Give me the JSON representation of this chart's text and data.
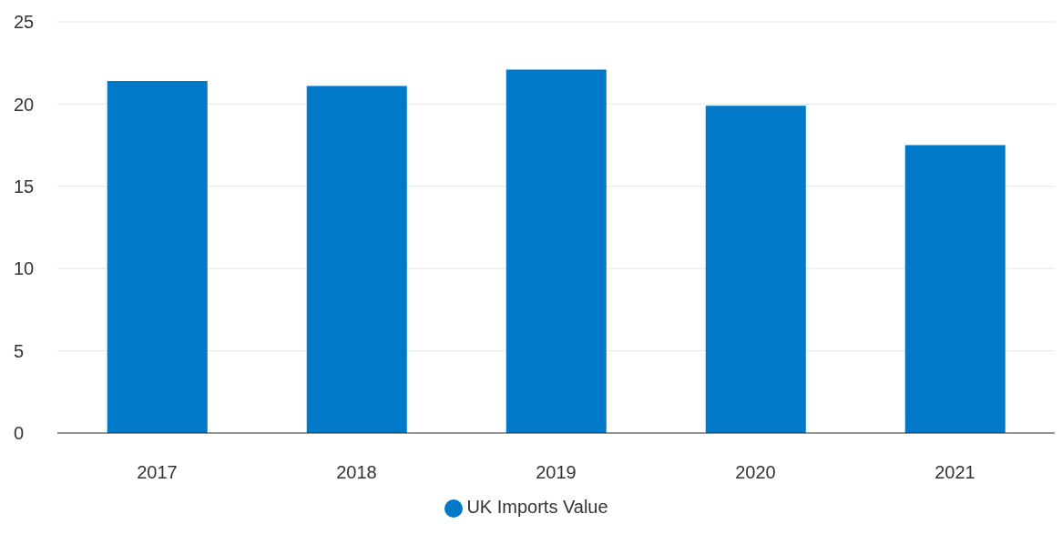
{
  "chart_data": {
    "type": "bar",
    "categories": [
      "2017",
      "2018",
      "2019",
      "2020",
      "2021"
    ],
    "series": [
      {
        "name": "UK Imports Value",
        "color": "#0079c9",
        "values": [
          21.4,
          21.1,
          22.1,
          19.9,
          17.5
        ]
      }
    ],
    "ylim": [
      0,
      25
    ],
    "yticks": [
      0,
      5,
      10,
      15,
      20,
      25
    ],
    "grid": "y",
    "legend": "bottom"
  }
}
